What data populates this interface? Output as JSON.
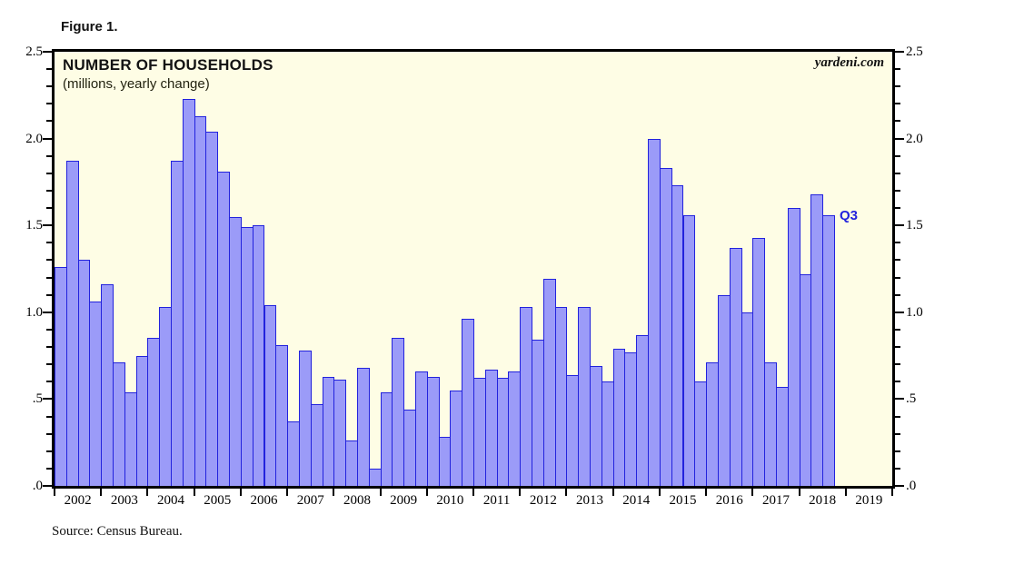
{
  "figure": {
    "label": "Figure 1."
  },
  "chart": {
    "title": "NUMBER OF HOUSEHOLDS",
    "subtitle": "(millions, yearly change)",
    "watermark": "yardeni.com",
    "annotation": "Q3",
    "source": "Source: Census Bureau."
  },
  "chart_data": {
    "type": "bar",
    "title": "NUMBER OF HOUSEHOLDS",
    "subtitle": "(millions, yearly change)",
    "frequency": "quarterly",
    "start": "2002 Q1",
    "end": "2018 Q3",
    "slots_per_year": 4,
    "ylim": [
      0,
      2.5
    ],
    "y_major_step": 0.5,
    "y_minor_step": 0.1,
    "y_tick_labels_top_to_bottom": [
      "2.5",
      "2.0",
      "1.5",
      "1.0",
      ".5",
      ".0"
    ],
    "x_tick_labels": [
      "2002",
      "2003",
      "2004",
      "2005",
      "2006",
      "2007",
      "2008",
      "2009",
      "2010",
      "2011",
      "2012",
      "2013",
      "2014",
      "2015",
      "2016",
      "2017",
      "2018",
      "2019"
    ],
    "grid": false,
    "legend": null,
    "last_point_label": "Q3",
    "values": [
      1.26,
      1.87,
      1.3,
      1.06,
      1.16,
      0.71,
      0.54,
      0.75,
      0.85,
      1.03,
      1.87,
      2.23,
      2.13,
      2.04,
      1.81,
      1.55,
      1.49,
      1.5,
      1.04,
      0.81,
      0.37,
      0.78,
      0.47,
      0.63,
      0.61,
      0.26,
      0.68,
      0.1,
      0.54,
      0.85,
      0.44,
      0.66,
      0.63,
      0.28,
      0.55,
      0.96,
      0.62,
      0.67,
      0.62,
      0.66,
      1.03,
      0.84,
      1.19,
      1.03,
      0.64,
      1.03,
      0.69,
      0.6,
      0.79,
      0.77,
      0.87,
      2.0,
      1.83,
      1.73,
      1.56,
      0.6,
      0.71,
      1.1,
      1.37,
      1.0,
      1.43,
      0.71,
      0.57,
      1.6,
      1.22,
      1.68,
      1.56
    ]
  },
  "colors": {
    "page_bg": "#FFFFFF",
    "plot_bg": "#FEFDE5",
    "bar_fill": "#9B9BF8",
    "bar_border": "#2222DD",
    "frame": "#000000",
    "annotation": "#2222DD",
    "text": "#000000"
  }
}
